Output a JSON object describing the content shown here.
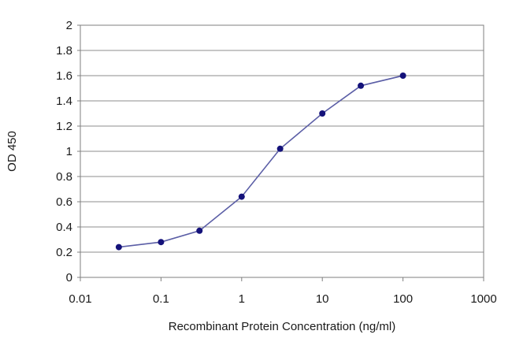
{
  "chart_data": {
    "type": "line",
    "title": "",
    "xlabel": "Recombinant Protein Concentration (ng/ml)",
    "ylabel": "OD 450",
    "xscale": "log",
    "xlim": [
      0.01,
      1000
    ],
    "ylim": [
      0,
      2
    ],
    "xticks": [
      "0.01",
      "0.1",
      "1",
      "10",
      "100",
      "1000"
    ],
    "yticks": [
      "0",
      "0.2",
      "0.4",
      "0.6",
      "0.8",
      "1",
      "1.2",
      "1.4",
      "1.6",
      "1.8",
      "2"
    ],
    "grid": "horizontal",
    "legend": "none",
    "line_color": "#5b5ea6",
    "marker_color": "#14127a",
    "series": [
      {
        "x": [
          0.03,
          0.1,
          0.3,
          1,
          3,
          10,
          30,
          100
        ],
        "y": [
          0.24,
          0.28,
          0.37,
          0.64,
          1.02,
          1.3,
          1.52,
          1.6
        ]
      }
    ]
  }
}
